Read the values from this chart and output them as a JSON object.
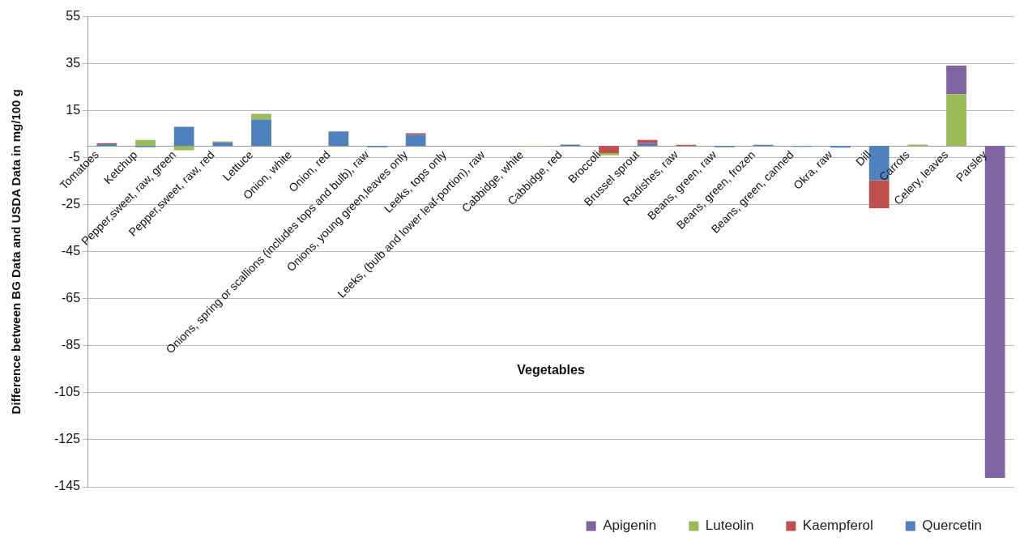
{
  "chart_data": {
    "type": "bar",
    "stacked": true,
    "xlabel": "Vegetables",
    "ylabel": "Difference between BG Data and USDA Data in mg/100 g",
    "categories": [
      "Tomatoes",
      "Ketchup",
      "Pepper,sweet, raw, green",
      "Pepper,sweet, raw, red",
      "Lettuce",
      "Onion, white",
      "Onion, red",
      "Onions, spring or scallions (includes tops and bulb), raw",
      "Onions, young green,leaves only",
      "Leeks, tops only",
      "Leeks, (bulb and lower leaf-portion), raw",
      "Cabbidge, white",
      "Cabbidge, red",
      "Broccoli",
      "Brussel sprout",
      "Radishes, raw",
      "Beans, green, raw",
      "Beans, green, frozen",
      "Beans, green, canned",
      "Okra, raw",
      "Dill",
      "Carrots",
      "Celery, leaves",
      "Parsley"
    ],
    "series": [
      {
        "name": "Quercetin",
        "color": "#4f81bd",
        "values": [
          0.8,
          -0.5,
          8.2,
          1.5,
          11.3,
          null,
          6.2,
          -0.5,
          4.8,
          null,
          null,
          null,
          0.6,
          null,
          1.2,
          null,
          -0.5,
          0.5,
          -0.4,
          -0.7,
          -14.6,
          null,
          null,
          null
        ]
      },
      {
        "name": "Kaempferol",
        "color": "#c0504d",
        "values": [
          0.4,
          null,
          null,
          null,
          null,
          null,
          null,
          null,
          0.6,
          null,
          null,
          null,
          null,
          -3,
          1.4,
          0.5,
          null,
          null,
          null,
          null,
          -11.9,
          null,
          null,
          null
        ]
      },
      {
        "name": "Luteolin",
        "color": "#9bbb59",
        "values": [
          null,
          2.6,
          -1.8,
          0.5,
          2.4,
          null,
          null,
          null,
          null,
          null,
          null,
          -0.3,
          null,
          -1,
          null,
          null,
          null,
          null,
          null,
          null,
          null,
          0.6,
          22,
          null
        ]
      },
      {
        "name": "Apigenin",
        "color": "#8064a2",
        "values": [
          null,
          null,
          null,
          null,
          null,
          null,
          null,
          null,
          null,
          null,
          null,
          null,
          null,
          null,
          null,
          null,
          null,
          null,
          null,
          null,
          null,
          null,
          12.2,
          -141.2
        ]
      }
    ],
    "ylim": [
      -145,
      55
    ],
    "yticks": [
      -145,
      -125,
      -105,
      -85,
      -65,
      -45,
      -25,
      -5,
      15,
      35,
      55
    ],
    "grid": "y",
    "legend": "bottom right"
  }
}
